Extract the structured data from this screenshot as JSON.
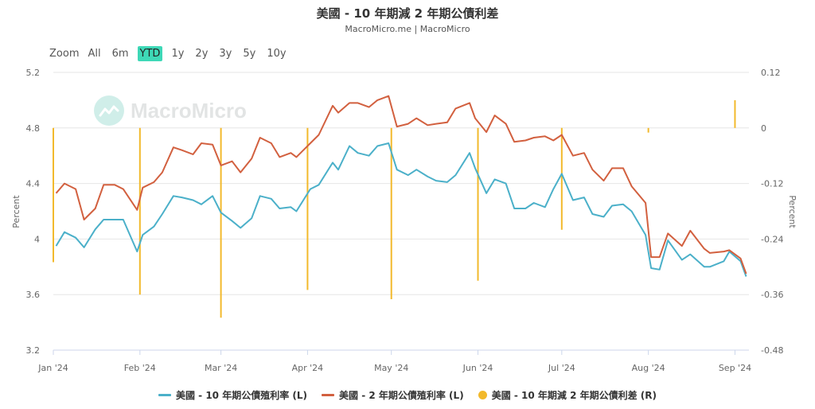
{
  "header": {
    "title": "美國 - 10 年期減 2 年期公債利差",
    "subtitle": "MacroMicro.me | MacroMicro"
  },
  "zoom": {
    "label": "Zoom",
    "buttons": [
      "All",
      "6m",
      "YTD",
      "1y",
      "2y",
      "3y",
      "5y",
      "10y"
    ],
    "active": "YTD"
  },
  "watermark": {
    "text": "MacroMicro"
  },
  "colors": {
    "ten_year": "#4bb0c9",
    "two_year": "#d2603f",
    "spread": "#f2b92c",
    "grid": "#e6e6e6"
  },
  "chart_data": {
    "type": "line",
    "x_range": [
      "2024-01-01",
      "2024-09-06"
    ],
    "x_ticks": [
      {
        "date": "2024-01-01",
        "label": "Jan '24"
      },
      {
        "date": "2024-02-01",
        "label": "Feb '24"
      },
      {
        "date": "2024-03-01",
        "label": "Mar '24"
      },
      {
        "date": "2024-04-01",
        "label": "Apr '24"
      },
      {
        "date": "2024-05-01",
        "label": "May '24"
      },
      {
        "date": "2024-06-01",
        "label": "Jun '24"
      },
      {
        "date": "2024-07-01",
        "label": "Jul '24"
      },
      {
        "date": "2024-08-01",
        "label": "Aug '24"
      },
      {
        "date": "2024-09-01",
        "label": "Sep '24"
      }
    ],
    "y_left": {
      "label": "Percent",
      "range": [
        3.2,
        5.2
      ],
      "ticks": [
        "5.2",
        "4.8",
        "4.4",
        "4",
        "3.6",
        "3.2"
      ]
    },
    "y_right": {
      "label": "Percent",
      "range": [
        -0.48,
        0.12
      ],
      "ticks": [
        "0.12",
        "0",
        "-0.12",
        "-0.24",
        "-0.36",
        "-0.48"
      ]
    },
    "legend_position": "bottom",
    "series": [
      {
        "name": "美國 - 10 年期公債殖利率 (L)",
        "axis": "left",
        "kind": "line",
        "points": [
          [
            "2024-01-02",
            3.95
          ],
          [
            "2024-01-05",
            4.05
          ],
          [
            "2024-01-09",
            4.01
          ],
          [
            "2024-01-12",
            3.94
          ],
          [
            "2024-01-16",
            4.07
          ],
          [
            "2024-01-19",
            4.14
          ],
          [
            "2024-01-23",
            4.14
          ],
          [
            "2024-01-26",
            4.14
          ],
          [
            "2024-01-31",
            3.91
          ],
          [
            "2024-02-02",
            4.03
          ],
          [
            "2024-02-06",
            4.09
          ],
          [
            "2024-02-09",
            4.18
          ],
          [
            "2024-02-13",
            4.31
          ],
          [
            "2024-02-16",
            4.3
          ],
          [
            "2024-02-20",
            4.28
          ],
          [
            "2024-02-23",
            4.25
          ],
          [
            "2024-02-27",
            4.31
          ],
          [
            "2024-03-01",
            4.19
          ],
          [
            "2024-03-05",
            4.13
          ],
          [
            "2024-03-08",
            4.08
          ],
          [
            "2024-03-12",
            4.15
          ],
          [
            "2024-03-15",
            4.31
          ],
          [
            "2024-03-19",
            4.29
          ],
          [
            "2024-03-22",
            4.22
          ],
          [
            "2024-03-26",
            4.23
          ],
          [
            "2024-03-28",
            4.2
          ],
          [
            "2024-04-02",
            4.36
          ],
          [
            "2024-04-05",
            4.39
          ],
          [
            "2024-04-10",
            4.55
          ],
          [
            "2024-04-12",
            4.5
          ],
          [
            "2024-04-16",
            4.67
          ],
          [
            "2024-04-19",
            4.62
          ],
          [
            "2024-04-23",
            4.6
          ],
          [
            "2024-04-26",
            4.67
          ],
          [
            "2024-04-30",
            4.69
          ],
          [
            "2024-05-03",
            4.5
          ],
          [
            "2024-05-07",
            4.46
          ],
          [
            "2024-05-10",
            4.5
          ],
          [
            "2024-05-14",
            4.45
          ],
          [
            "2024-05-17",
            4.42
          ],
          [
            "2024-05-21",
            4.41
          ],
          [
            "2024-05-24",
            4.46
          ],
          [
            "2024-05-29",
            4.62
          ],
          [
            "2024-05-31",
            4.51
          ],
          [
            "2024-06-04",
            4.33
          ],
          [
            "2024-06-07",
            4.43
          ],
          [
            "2024-06-11",
            4.4
          ],
          [
            "2024-06-14",
            4.22
          ],
          [
            "2024-06-18",
            4.22
          ],
          [
            "2024-06-21",
            4.26
          ],
          [
            "2024-06-25",
            4.23
          ],
          [
            "2024-06-28",
            4.36
          ],
          [
            "2024-07-01",
            4.47
          ],
          [
            "2024-07-05",
            4.28
          ],
          [
            "2024-07-09",
            4.3
          ],
          [
            "2024-07-12",
            4.18
          ],
          [
            "2024-07-16",
            4.16
          ],
          [
            "2024-07-19",
            4.24
          ],
          [
            "2024-07-23",
            4.25
          ],
          [
            "2024-07-26",
            4.2
          ],
          [
            "2024-07-31",
            4.03
          ],
          [
            "2024-08-02",
            3.79
          ],
          [
            "2024-08-05",
            3.78
          ],
          [
            "2024-08-08",
            3.99
          ],
          [
            "2024-08-13",
            3.85
          ],
          [
            "2024-08-16",
            3.89
          ],
          [
            "2024-08-21",
            3.8
          ],
          [
            "2024-08-23",
            3.8
          ],
          [
            "2024-08-28",
            3.84
          ],
          [
            "2024-08-30",
            3.91
          ],
          [
            "2024-09-03",
            3.84
          ],
          [
            "2024-09-05",
            3.73
          ]
        ]
      },
      {
        "name": "美國 - 2 年期公債殖利率 (L)",
        "axis": "left",
        "kind": "line",
        "points": [
          [
            "2024-01-02",
            4.33
          ],
          [
            "2024-01-05",
            4.4
          ],
          [
            "2024-01-09",
            4.36
          ],
          [
            "2024-01-12",
            4.14
          ],
          [
            "2024-01-16",
            4.22
          ],
          [
            "2024-01-19",
            4.39
          ],
          [
            "2024-01-23",
            4.39
          ],
          [
            "2024-01-26",
            4.36
          ],
          [
            "2024-01-31",
            4.21
          ],
          [
            "2024-02-02",
            4.37
          ],
          [
            "2024-02-06",
            4.41
          ],
          [
            "2024-02-09",
            4.48
          ],
          [
            "2024-02-13",
            4.66
          ],
          [
            "2024-02-16",
            4.64
          ],
          [
            "2024-02-20",
            4.61
          ],
          [
            "2024-02-23",
            4.69
          ],
          [
            "2024-02-27",
            4.68
          ],
          [
            "2024-03-01",
            4.53
          ],
          [
            "2024-03-05",
            4.56
          ],
          [
            "2024-03-08",
            4.48
          ],
          [
            "2024-03-12",
            4.58
          ],
          [
            "2024-03-15",
            4.73
          ],
          [
            "2024-03-19",
            4.69
          ],
          [
            "2024-03-22",
            4.59
          ],
          [
            "2024-03-26",
            4.62
          ],
          [
            "2024-03-28",
            4.59
          ],
          [
            "2024-04-02",
            4.69
          ],
          [
            "2024-04-05",
            4.75
          ],
          [
            "2024-04-10",
            4.96
          ],
          [
            "2024-04-12",
            4.91
          ],
          [
            "2024-04-16",
            4.98
          ],
          [
            "2024-04-19",
            4.98
          ],
          [
            "2024-04-23",
            4.95
          ],
          [
            "2024-04-26",
            5.0
          ],
          [
            "2024-04-30",
            5.03
          ],
          [
            "2024-05-03",
            4.81
          ],
          [
            "2024-05-07",
            4.83
          ],
          [
            "2024-05-10",
            4.87
          ],
          [
            "2024-05-14",
            4.82
          ],
          [
            "2024-05-17",
            4.83
          ],
          [
            "2024-05-21",
            4.84
          ],
          [
            "2024-05-24",
            4.94
          ],
          [
            "2024-05-29",
            4.98
          ],
          [
            "2024-05-31",
            4.87
          ],
          [
            "2024-06-04",
            4.77
          ],
          [
            "2024-06-07",
            4.89
          ],
          [
            "2024-06-11",
            4.83
          ],
          [
            "2024-06-14",
            4.7
          ],
          [
            "2024-06-18",
            4.71
          ],
          [
            "2024-06-21",
            4.73
          ],
          [
            "2024-06-25",
            4.74
          ],
          [
            "2024-06-28",
            4.71
          ],
          [
            "2024-07-01",
            4.75
          ],
          [
            "2024-07-05",
            4.6
          ],
          [
            "2024-07-09",
            4.62
          ],
          [
            "2024-07-12",
            4.5
          ],
          [
            "2024-07-16",
            4.42
          ],
          [
            "2024-07-19",
            4.51
          ],
          [
            "2024-07-23",
            4.51
          ],
          [
            "2024-07-26",
            4.38
          ],
          [
            "2024-07-31",
            4.26
          ],
          [
            "2024-08-02",
            3.87
          ],
          [
            "2024-08-05",
            3.87
          ],
          [
            "2024-08-08",
            4.04
          ],
          [
            "2024-08-13",
            3.95
          ],
          [
            "2024-08-16",
            4.06
          ],
          [
            "2024-08-21",
            3.93
          ],
          [
            "2024-08-23",
            3.9
          ],
          [
            "2024-08-28",
            3.91
          ],
          [
            "2024-08-30",
            3.92
          ],
          [
            "2024-09-03",
            3.86
          ],
          [
            "2024-09-05",
            3.75
          ]
        ]
      },
      {
        "name": "美國 - 10 年期減 2 年期公債利差 (R)",
        "axis": "right",
        "kind": "monthly_bars",
        "points": [
          [
            "2024-01-01",
            -0.29
          ],
          [
            "2024-02-01",
            -0.36
          ],
          [
            "2024-03-01",
            -0.41
          ],
          [
            "2024-04-01",
            -0.35
          ],
          [
            "2024-05-01",
            -0.37
          ],
          [
            "2024-06-01",
            -0.33
          ],
          [
            "2024-07-01",
            -0.22
          ],
          [
            "2024-08-01",
            -0.01
          ],
          [
            "2024-09-01",
            0.06
          ]
        ]
      }
    ]
  }
}
